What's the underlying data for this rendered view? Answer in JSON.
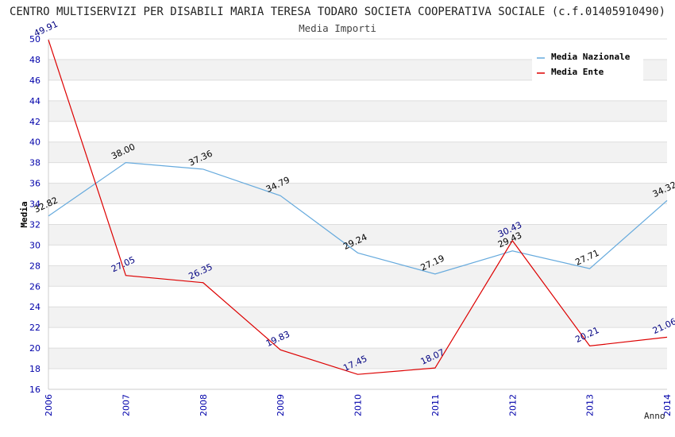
{
  "chart_data": {
    "type": "line",
    "title": "CENTRO MULTISERVIZI PER DISABILI MARIA TERESA TODARO SOCIETA COOPERATIVA SOCIALE (c.f.01405910490)",
    "subtitle": "Media Importi",
    "xlabel": "Anno",
    "ylabel": "Media",
    "categories": [
      "2006",
      "2007",
      "2008",
      "2009",
      "2010",
      "2011",
      "2012",
      "2013",
      "2014"
    ],
    "ylim": [
      16,
      50
    ],
    "yticks": [
      16,
      18,
      20,
      22,
      24,
      26,
      28,
      30,
      32,
      34,
      36,
      38,
      40,
      42,
      44,
      46,
      48,
      50
    ],
    "grid": true,
    "legend_position": "top-right",
    "series": [
      {
        "name": "Media Nazionale",
        "color": "#66aadd",
        "label_color": "#000000",
        "values": [
          32.82,
          38.0,
          37.36,
          34.79,
          29.24,
          27.19,
          29.43,
          27.71,
          34.32
        ],
        "labels": [
          "32.82",
          "38.00",
          "37.36",
          "34.79",
          "29.24",
          "27.19",
          "29.43",
          "27.71",
          "34.32"
        ]
      },
      {
        "name": "Media Ente",
        "color": "#dd0000",
        "label_color": "#000080",
        "values": [
          49.91,
          27.05,
          26.35,
          19.83,
          17.45,
          18.07,
          30.43,
          20.21,
          21.06
        ],
        "labels": [
          "49.91",
          "27.05",
          "26.35",
          "19.83",
          "17.45",
          "18.07",
          "30.43",
          "20.21",
          "21.06"
        ]
      }
    ]
  }
}
